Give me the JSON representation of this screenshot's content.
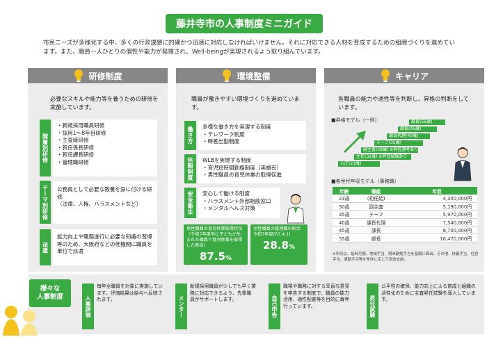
{
  "title": "藤井寺市の人事制度ミニガイド",
  "intro": "市民ニーズが多様化する中、多くの行政課題に的確かつ迅速に対応しなければいけません。それに対応できる人材を育成するための組織づくりを進めています。また、職員一人ひとりの個性や能力が発揮され、Well-beingが実現されるよう取り組んでいます。",
  "sections": {
    "training": {
      "heading": "研修制度",
      "lead": "必要なスキルや能力等を養うための研修を実施しています。",
      "blocks": [
        {
          "tag": "階層別研修",
          "text": "・新規採用職員研修\n・採用1～8年目研修\n・主査級研修\n・新任係長研修\n・新任課長研修\n・管理職研修"
        },
        {
          "tag": "テーマ別研修",
          "text": "公務員として必要な教養を身に付ける研修\n（法律、人権、ハラスメントなど）"
        },
        {
          "tag": "派遣",
          "text": "能力向上や職務遂行に必要な知識の習得等のため、大阪府などの他機関に職員を単位で派遣"
        }
      ]
    },
    "environment": {
      "heading": "環境整備",
      "lead": "職員が働きやすい環境づくりを進めています。",
      "blocks": [
        {
          "tag": "働き方",
          "text": "多様な働き方を実現する制度\n・テレワーク制度\n・時差出勤制度"
        },
        {
          "tag": "休暇制度",
          "text": "WLBを実現する制度\n・育児短時間勤務制度（実績有）\n・男性職員の育児休業の取得促進"
        },
        {
          "tag": "安全衛生",
          "text": "安心して働ける制度\n・ハラスメント外部相談窓口\n・メンタルヘルス対策"
        }
      ],
      "stats": [
        {
          "caption": "男性職員の育児休業取得状況（令和7年度中に子どもが生まれた職員で育児休業を取得した割合）",
          "value": "87.5",
          "unit": "%"
        },
        {
          "caption": "女性職員の管理職の割合",
          "caption2": "令和7年度(R7.4.1)",
          "value": "28.8",
          "unit": "%"
        }
      ]
    },
    "career": {
      "heading": "キャリア",
      "lead": "各職員の能力や適性等を判断し、昇格の判断をしています。",
      "model_title": "■昇格モデル（一例）",
      "ladder": [
        "入庁(23歳)",
        "主任(32歳) ※昇任試験あり",
        "副主査(28歳) ※昇任選考あり",
        "チーフ(35歳)",
        "課長代理(40歳)",
        "課長(45歳)",
        "部長(55歳)"
      ],
      "salary_title": "■各世代年収モデル（事務職）",
      "salary_headers": [
        "年齢",
        "職級",
        "年収"
      ],
      "salary_rows": [
        [
          "23歳",
          "(初任給)",
          "4,300,000円"
        ],
        [
          "30歳",
          "副主査",
          "5,190,000円"
        ],
        [
          "35歳",
          "チーフ",
          "5,970,000円"
        ],
        [
          "40歳",
          "課長代理",
          "7,540,000円"
        ],
        [
          "45歳",
          "課長",
          "8,700,000円"
        ],
        [
          "55歳",
          "部長",
          "10,470,000円"
        ]
      ],
      "note": "※年収は、給料月額、地域手当、期末勤勉手当を基礎に算出。その他、扶養手当、住居手当、通勤手当等を条件に応じて別途支給。"
    }
  },
  "bottom": {
    "bubble": "様々な\n人事制度",
    "items": [
      {
        "tag": "人事評価",
        "text": "毎年全職員を対象に実施しています。評価結果は給与へ反映されます。"
      },
      {
        "tag": "メンター",
        "text": "新規採用職員が少しでも早く業務に対応できるよう、先輩職員がサポートします。"
      },
      {
        "tag": "自己申告",
        "text": "職場や職務に対する率直な意見を申告する制度で、職員の能力活用、適性配置等を目的に毎年行っています。"
      },
      {
        "tag": "昇任試験",
        "text": "公平性の確保、能力向上による育成と組織の活性化のために主査昇任試験を導入しています。"
      }
    ]
  },
  "colors": {
    "green": "#3aaa42",
    "gray": "#878787",
    "panel": "#ececec",
    "yellow": "#f4c21c"
  }
}
